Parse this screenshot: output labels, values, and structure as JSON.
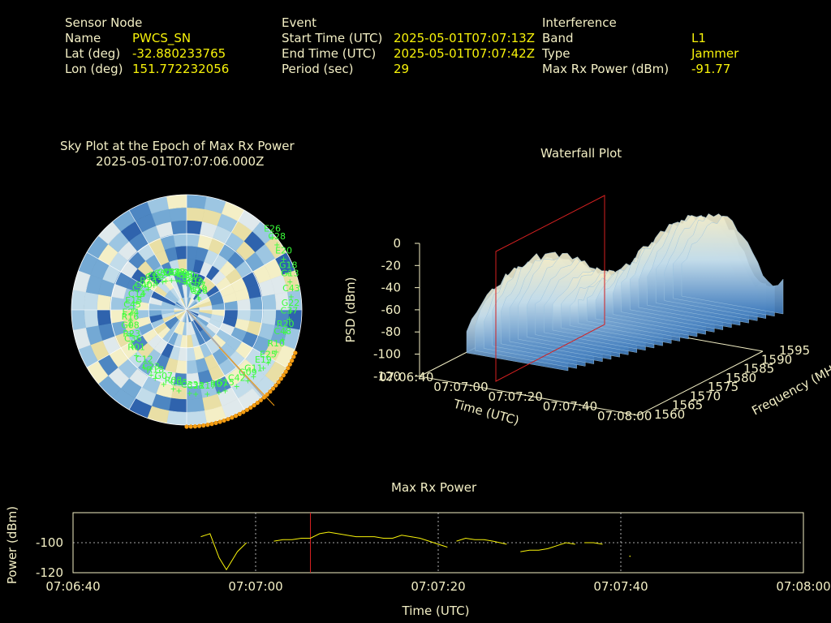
{
  "header": {
    "sensor": {
      "title": "Sensor Node",
      "rows": [
        {
          "label": "Name",
          "value": "PWCS_SN"
        },
        {
          "label": "Lat (deg)",
          "value": "-32.880233765"
        },
        {
          "label": "Lon (deg)",
          "value": "151.772232056"
        }
      ]
    },
    "event": {
      "title": "Event",
      "rows": [
        {
          "label": "Start Time (UTC)",
          "value": "2025-05-01T07:07:13Z"
        },
        {
          "label": "End Time (UTC)",
          "value": "2025-05-01T07:07:42Z"
        },
        {
          "label": "Period (sec)",
          "value": "29"
        }
      ]
    },
    "interference": {
      "title": "Interference",
      "rows": [
        {
          "label": "Band",
          "value": "L1"
        },
        {
          "label": "Type",
          "value": "Jammer"
        },
        {
          "label": "Max Rx Power (dBm)",
          "value": "-91.77"
        }
      ]
    }
  },
  "chart_data": [
    {
      "type": "scatter",
      "title": "Sky Plot at the Epoch of Max Rx Power",
      "subtitle": "2025-05-01T07:07:06.000Z",
      "satellites": [
        "C20",
        "G09",
        "E15",
        "C28",
        "R08",
        "C16",
        "C48",
        "R23",
        "C10",
        "R07",
        "C40",
        "G13",
        "C23",
        "C30",
        "E19",
        "E24",
        "C26",
        "C33",
        "G12",
        "C37",
        "R01",
        "E27",
        "C42",
        "C14",
        "E20",
        "G07",
        "C34",
        "R10",
        "G08",
        "C27",
        "R17",
        "R24",
        "C43",
        "C12",
        "E08",
        "G11",
        "C45",
        "E26",
        "C05",
        "C02",
        "R20",
        "C36",
        "R03",
        "G15",
        "C25",
        "G18",
        "R18",
        "E23",
        "E25",
        "R16",
        "C19",
        "C21",
        "C11",
        "G22"
      ],
      "highlight_color": "#f39c12"
    },
    {
      "type": "area",
      "title": "Waterfall Plot",
      "zlabel": "PSD (dBm)",
      "xlabel": "Time (UTC)",
      "ylabel": "Frequency (MHz)",
      "z_ticks": [
        "0",
        "-20",
        "-40",
        "-60",
        "-80",
        "-100",
        "-120"
      ],
      "x_ticks": [
        "07:06:40",
        "07:07:00",
        "07:07:20",
        "07:07:40",
        "07:08:00"
      ],
      "y_ticks": [
        "1560",
        "1565",
        "1570",
        "1575",
        "1580",
        "1585",
        "1590",
        "1595"
      ],
      "marker_color": "#d42020"
    },
    {
      "type": "line",
      "title": "Max Rx Power",
      "xlabel": "Time (UTC)",
      "ylabel": "Power (dBm)",
      "x_ticks": [
        "07:06:40",
        "07:07:00",
        "07:07:20",
        "07:07:40",
        "07:08:00"
      ],
      "y_ticks": [
        "-100",
        "-120"
      ],
      "ylim": [
        -120,
        -80
      ],
      "xlim_sec": [
        0,
        80
      ],
      "marker_sec": 26,
      "line_color": "#f7f20a",
      "marker_color": "#d42020",
      "series": [
        {
          "x": [
            14.0,
            15.0,
            16.0,
            16.8,
            18.0,
            19.0
          ],
          "y": [
            -96,
            -94,
            -110,
            -118,
            -106,
            -100
          ]
        },
        {
          "x": [
            22.0,
            23.0,
            24.0,
            25.0,
            26.0,
            27.0,
            28.0,
            29.0,
            30.0,
            31.0,
            33.0,
            34.0,
            35.0,
            36.0,
            37.0,
            38.0,
            39.0,
            40.0,
            41.0
          ],
          "y": [
            -99,
            -98,
            -98,
            -97,
            -97,
            -94,
            -93,
            -94,
            -95,
            -96,
            -96,
            -97,
            -97,
            -95,
            -96,
            -97,
            -99,
            -101,
            -103
          ]
        },
        {
          "x": [
            42.0,
            43.0,
            44.0,
            45.0,
            46.0,
            47.5
          ],
          "y": [
            -99,
            -97,
            -98,
            -98,
            -99,
            -101
          ]
        },
        {
          "x": [
            49.0,
            50.0,
            51.0,
            52.0,
            53.0,
            54.0,
            55.0
          ],
          "y": [
            -106,
            -105,
            -105,
            -104,
            -102,
            -100,
            -101
          ]
        },
        {
          "x": [
            56.0,
            57.0,
            58.0
          ],
          "y": [
            -100,
            -100,
            -101
          ]
        },
        {
          "x": [
            61.0
          ],
          "y": [
            -109
          ]
        }
      ]
    }
  ]
}
